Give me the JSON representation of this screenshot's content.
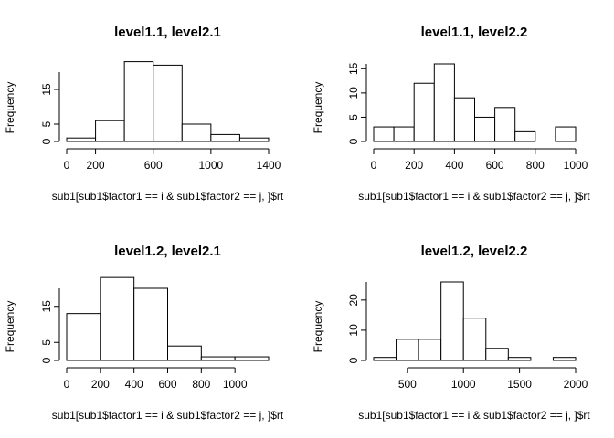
{
  "chart_data": [
    {
      "type": "bar",
      "title": "level1.1, level2.1",
      "xlabel": "sub1[sub1$factor1 == i & sub1$factor2 == j, ]$rt",
      "ylabel": "Frequency",
      "bin_edges": [
        0,
        200,
        400,
        600,
        800,
        1000,
        1200,
        1400
      ],
      "values": [
        1,
        6,
        23,
        22,
        5,
        2,
        1
      ],
      "xticks": [
        0,
        200,
        600,
        1000,
        1400
      ],
      "yticks": [
        0,
        5,
        15
      ],
      "xlim": [
        0,
        1400
      ],
      "ylim": [
        0,
        20
      ]
    },
    {
      "type": "bar",
      "title": "level1.1, level2.2",
      "xlabel": "sub1[sub1$factor1 == i & sub1$factor2 == j, ]$rt",
      "ylabel": "Frequency",
      "bin_edges": [
        0,
        100,
        200,
        300,
        400,
        500,
        600,
        700,
        800,
        900,
        1000
      ],
      "values": [
        3,
        3,
        12,
        16,
        9,
        5,
        7,
        2,
        0,
        3
      ],
      "xticks": [
        0,
        200,
        400,
        600,
        800,
        1000
      ],
      "yticks": [
        0,
        5,
        10,
        15
      ],
      "xlim": [
        0,
        1000
      ],
      "ylim": [
        0,
        16
      ]
    },
    {
      "type": "bar",
      "title": "level1.2, level2.1",
      "xlabel": "sub1[sub1$factor1 == i & sub1$factor2 == j, ]$rt",
      "ylabel": "Frequency",
      "bin_edges": [
        0,
        200,
        400,
        600,
        800,
        1000,
        1200
      ],
      "values": [
        13,
        23,
        20,
        4,
        1,
        1
      ],
      "xticks": [
        0,
        200,
        400,
        600,
        800,
        1000
      ],
      "yticks": [
        0,
        5,
        15
      ],
      "xlim": [
        0,
        1200
      ],
      "ylim": [
        0,
        20
      ]
    },
    {
      "type": "bar",
      "title": "level1.2, level2.2",
      "xlabel": "sub1[sub1$factor1 == i & sub1$factor2 == j, ]$rt",
      "ylabel": "Frequency",
      "bin_edges": [
        200,
        400,
        600,
        800,
        1000,
        1200,
        1400,
        1600,
        1800,
        2000
      ],
      "values": [
        1,
        7,
        7,
        26,
        14,
        4,
        1,
        0,
        1
      ],
      "xticks": [
        500,
        1000,
        1500,
        2000
      ],
      "yticks": [
        0,
        10,
        20
      ],
      "xlim": [
        200,
        2000
      ],
      "ylim": [
        0,
        26
      ]
    }
  ]
}
